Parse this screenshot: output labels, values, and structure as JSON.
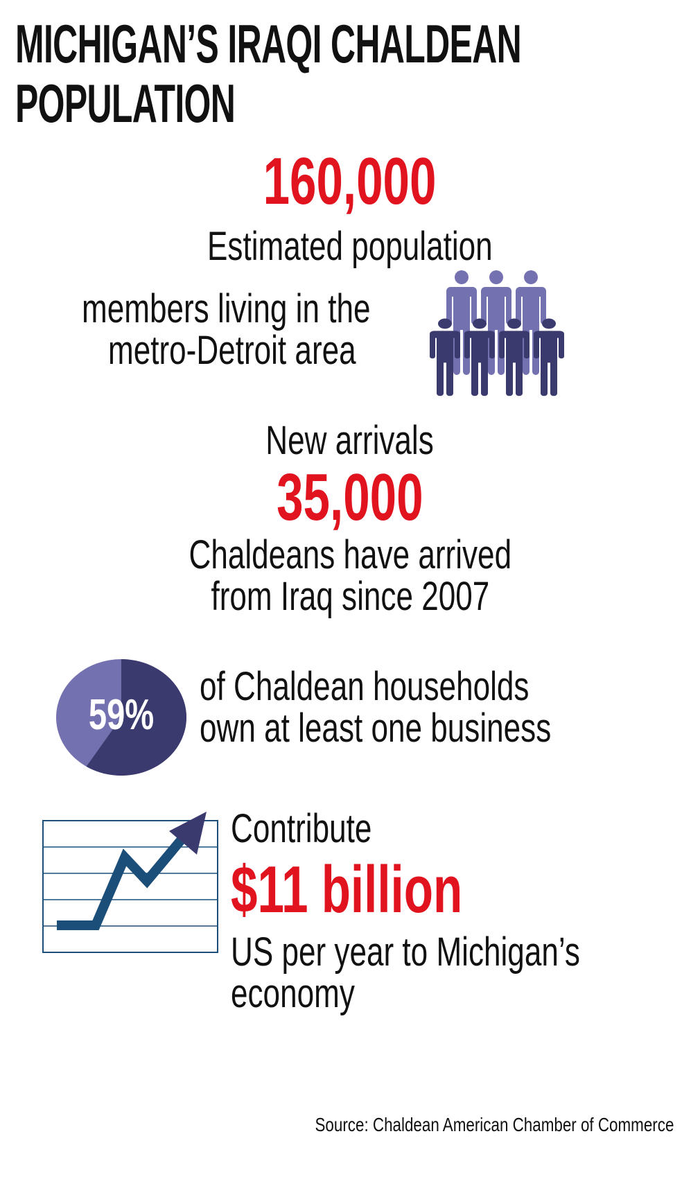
{
  "title": {
    "line1": "MICHIGAN’S IRAQI CHALDEAN",
    "line2": "POPULATION"
  },
  "population": {
    "value": "160,000",
    "line1": "Estimated population",
    "line2": "members living in the",
    "line3": "metro-Detroit area",
    "icon": "people-group-icon"
  },
  "arrivals": {
    "heading": "New arrivals",
    "value": "35,000",
    "line1": "Chaldeans have arrived",
    "line2": "from Iraq since 2007"
  },
  "business": {
    "percent_label": "59%",
    "percent": 59,
    "line1": "of Chaldean households",
    "line2": "own at least one business",
    "icon": "pie-chart-icon"
  },
  "economy": {
    "line1": "Contribute",
    "value": "$11 billion",
    "line2": "US per year to Michigan’s",
    "line3": "economy",
    "icon": "rising-line-chart-icon"
  },
  "source": "Source: Chaldean American Chamber of Commerce",
  "colors": {
    "accent_red": "#e0131e",
    "navy": "#3b3a6e",
    "lavender": "#7471b0",
    "chart_line": "#1c4e7a"
  }
}
